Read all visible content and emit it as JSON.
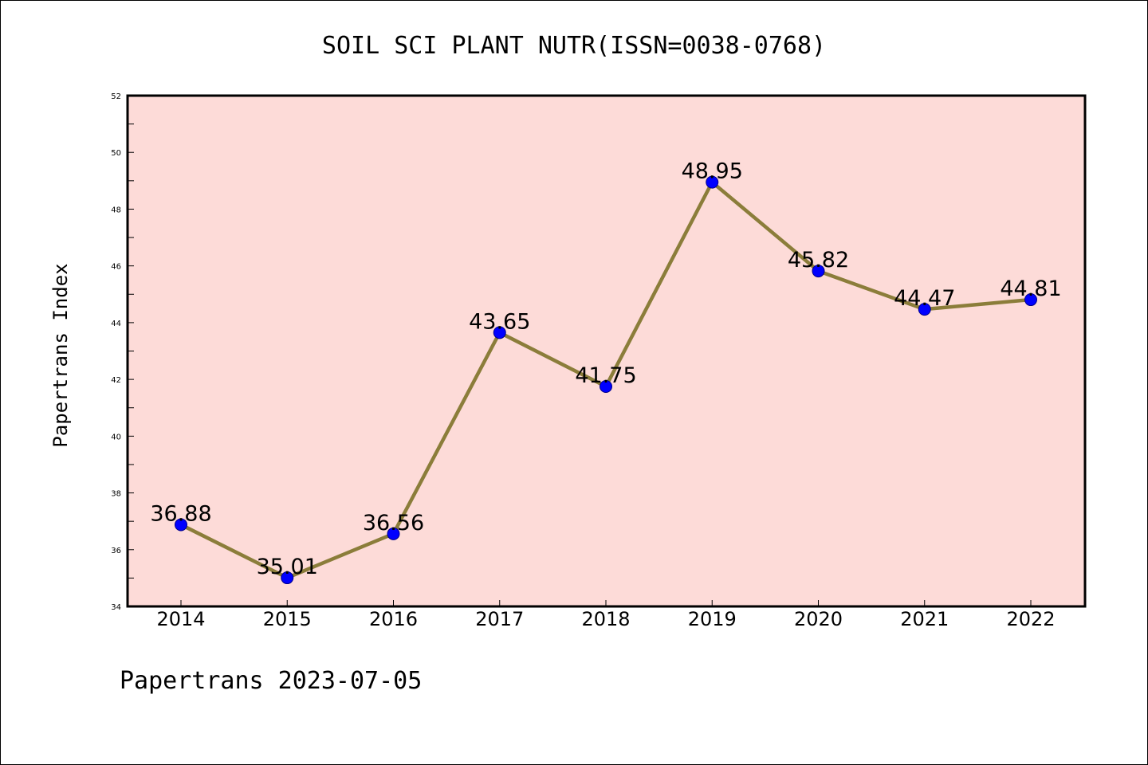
{
  "chart_data": {
    "type": "line",
    "title": "SOIL SCI PLANT NUTR(ISSN=0038-0768)",
    "xlabel": "",
    "ylabel": "Papertrans Index",
    "categories": [
      "2014",
      "2015",
      "2016",
      "2017",
      "2018",
      "2019",
      "2020",
      "2021",
      "2022"
    ],
    "series": [
      {
        "values": [
          36.88,
          35.01,
          36.56,
          43.65,
          41.75,
          48.95,
          45.82,
          44.47,
          44.81
        ],
        "labels": [
          "36.88",
          "35.01",
          "36.56",
          "43.65",
          "41.75",
          "48.95",
          "45.82",
          "44.47",
          "44.81"
        ]
      }
    ],
    "ylim": [
      34,
      52
    ],
    "yticks": [
      "34",
      "36",
      "38",
      "40",
      "42",
      "44",
      "46",
      "48",
      "50",
      "52"
    ],
    "grid": false,
    "legend": "none",
    "colors": {
      "plot_background": "#fddbd8",
      "line": "#8b7d3a",
      "marker": "#0000ff"
    }
  },
  "footer": "Papertrans 2023-07-05"
}
